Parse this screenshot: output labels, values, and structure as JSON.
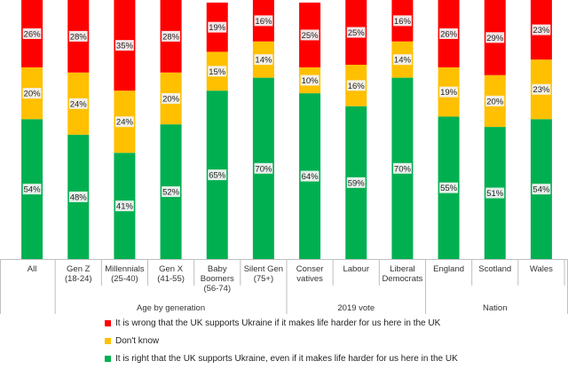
{
  "chart_data": {
    "type": "bar",
    "stacked": true,
    "normalized_percent": true,
    "categories": [
      "All",
      "Gen Z\n(18-24)",
      "Millennials\n(25-40)",
      "Gen X\n(41-55)",
      "Baby\nBoomers\n(56-74)",
      "Silent Gen\n(75+)",
      "Conser\nvatives",
      "Labour",
      "Liberal\nDemocrats",
      "England",
      "Scotland",
      "Wales"
    ],
    "groups": [
      {
        "label": "",
        "categories": [
          "All"
        ]
      },
      {
        "label": "Age by generation",
        "categories": [
          "Gen Z\n(18-24)",
          "Millennials\n(25-40)",
          "Gen X\n(41-55)",
          "Baby\nBoomers\n(56-74)",
          "Silent Gen\n(75+)"
        ]
      },
      {
        "label": "2019 vote",
        "categories": [
          "Conser\nvatives",
          "Labour",
          "Liberal\nDemocrats"
        ]
      },
      {
        "label": "Nation",
        "categories": [
          "England",
          "Scotland",
          "Wales"
        ]
      }
    ],
    "series": [
      {
        "name": "It is right that the UK supports Ukraine, even if it makes life harder for us here in the UK",
        "color": "#00b050",
        "values": [
          54,
          48,
          41,
          52,
          65,
          70,
          64,
          59,
          70,
          55,
          51,
          54
        ]
      },
      {
        "name": "Don't know",
        "color": "#ffc000",
        "values": [
          20,
          24,
          24,
          20,
          15,
          14,
          10,
          16,
          14,
          19,
          20,
          23
        ]
      },
      {
        "name": "It is wrong that the UK supports Ukraine if it makes life harder for us here in the UK",
        "color": "#ff0000",
        "values": [
          26,
          28,
          35,
          28,
          19,
          16,
          25,
          25,
          16,
          26,
          29,
          23
        ]
      }
    ],
    "data_label_suffix": "%",
    "legend_order": [
      2,
      1,
      0
    ],
    "legend_position": "bottom",
    "ylim": [
      0,
      100
    ]
  }
}
